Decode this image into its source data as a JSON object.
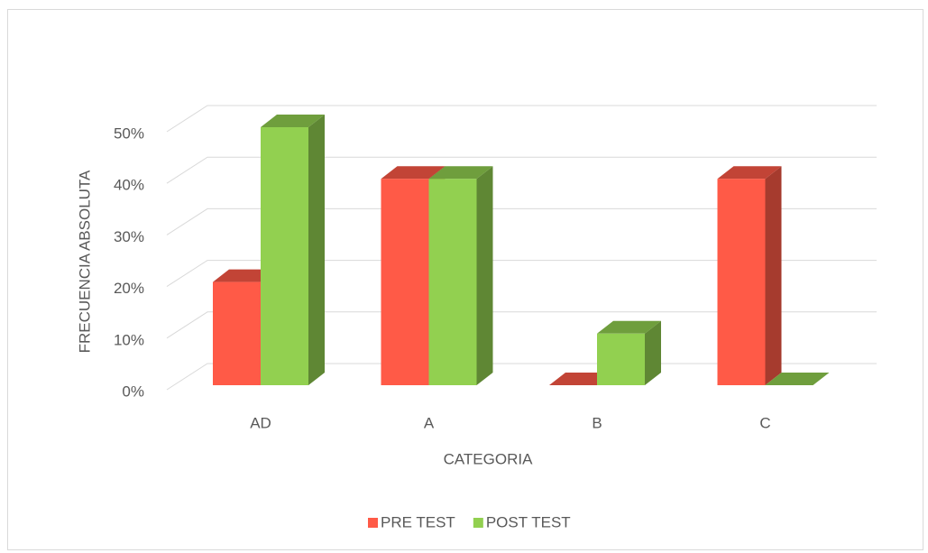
{
  "chart_data": {
    "type": "bar3d",
    "x_label": "CATEGORIA",
    "y_label": "FRECUENCIA ABSOLUTA",
    "categories": [
      "AD",
      "A",
      "B",
      "C"
    ],
    "series": [
      {
        "name": "PRE TEST",
        "color": "#ff5a47",
        "values": [
          20,
          40,
          0,
          40
        ]
      },
      {
        "name": "POST TEST",
        "color": "#92d050",
        "values": [
          50,
          40,
          10,
          0
        ]
      }
    ],
    "ylim": [
      0,
      50
    ],
    "yticks": [
      {
        "value": 0,
        "label": "0%"
      },
      {
        "value": 10,
        "label": "10%"
      },
      {
        "value": 20,
        "label": "20%"
      },
      {
        "value": 30,
        "label": "30%"
      },
      {
        "value": 40,
        "label": "40%"
      },
      {
        "value": 50,
        "label": "50%"
      }
    ],
    "grid": true,
    "legend": "bottom"
  }
}
